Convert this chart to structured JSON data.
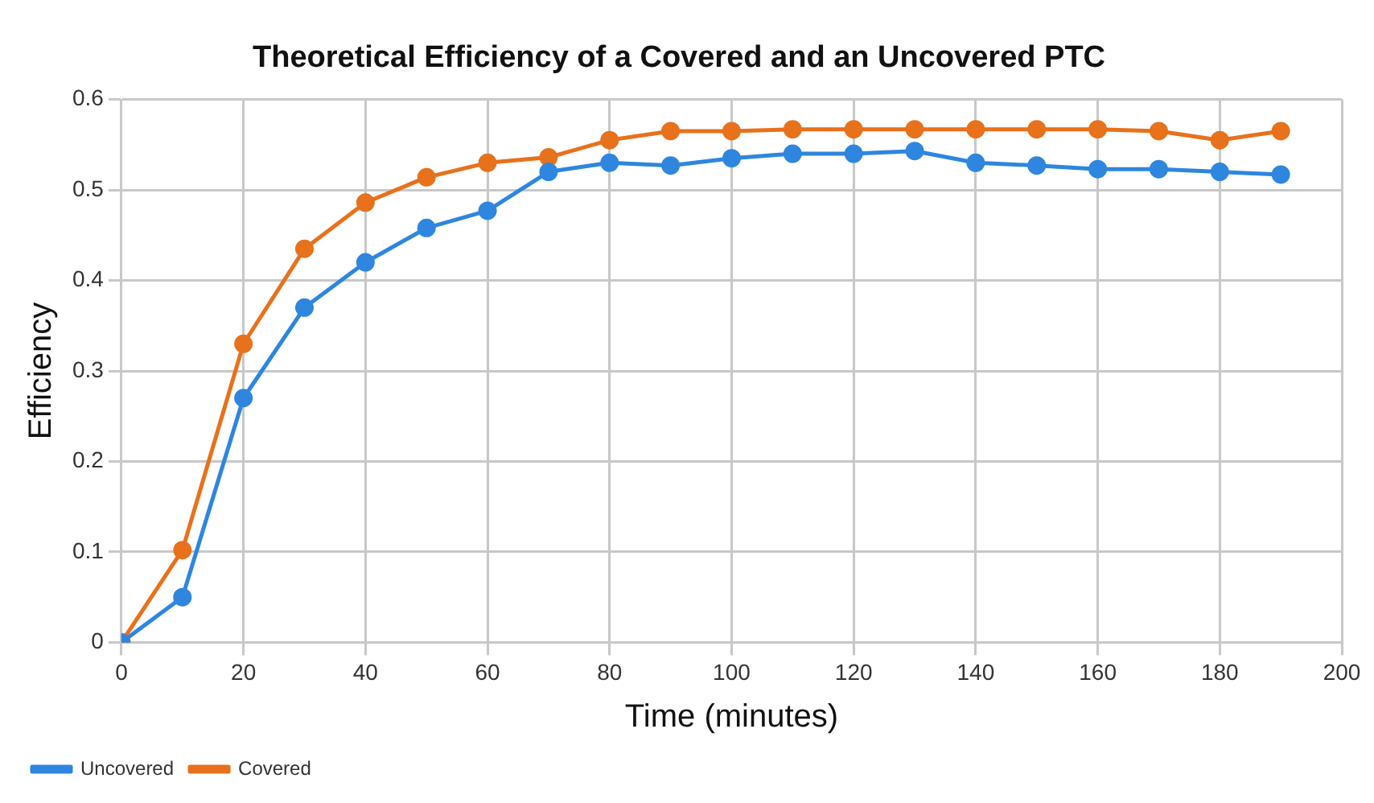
{
  "chart_data": {
    "type": "line",
    "title": "Theoretical Efficiency of a Covered and an Uncovered PTC",
    "xlabel": "Time (minutes)",
    "ylabel": "Efficiency",
    "x": [
      0,
      10,
      20,
      30,
      40,
      50,
      60,
      70,
      80,
      90,
      100,
      110,
      120,
      130,
      140,
      150,
      160,
      170,
      180,
      190
    ],
    "series": [
      {
        "name": "Uncovered",
        "color": "#2e86de",
        "values": [
          0,
          0.05,
          0.27,
          0.37,
          0.42,
          0.458,
          0.477,
          0.52,
          0.53,
          0.527,
          0.535,
          0.54,
          0.54,
          0.543,
          0.53,
          0.527,
          0.523,
          0.523,
          0.52,
          0.517
        ]
      },
      {
        "name": "Covered",
        "color": "#e8711c",
        "values": [
          0,
          0.102,
          0.33,
          0.435,
          0.486,
          0.514,
          0.53,
          0.536,
          0.555,
          0.565,
          0.565,
          0.567,
          0.567,
          0.567,
          0.567,
          0.567,
          0.567,
          0.565,
          0.555,
          0.565
        ]
      }
    ],
    "xlim": [
      0,
      200
    ],
    "xticks": [
      0,
      20,
      40,
      60,
      80,
      100,
      120,
      140,
      160,
      180,
      200
    ],
    "ylim": [
      0,
      0.6
    ],
    "yticks": [
      0,
      0.1,
      0.2,
      0.3,
      0.4,
      0.5,
      0.6
    ],
    "grid": true,
    "legend": "bottom left",
    "marker": "circle",
    "line_style": "solid"
  }
}
